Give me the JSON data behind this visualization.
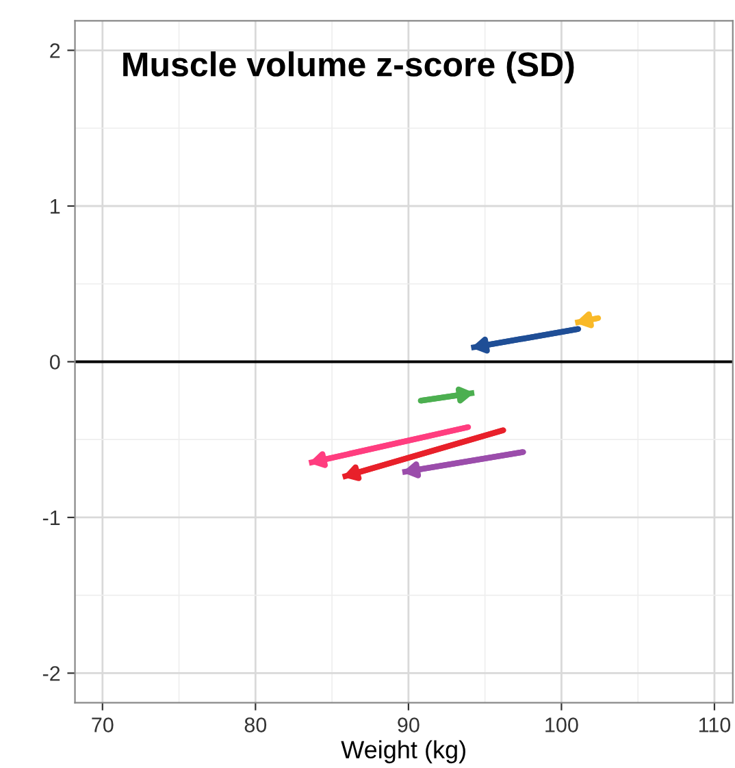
{
  "chart_data": {
    "type": "line",
    "title": "Muscle volume z-score (SD)",
    "xlabel": "Weight (kg)",
    "xlim": [
      68.2,
      111.2
    ],
    "ylim": [
      -2.19,
      2.19
    ],
    "xticks": [
      70,
      80,
      90,
      100,
      110
    ],
    "yticks": [
      -2,
      -1,
      0,
      1,
      2
    ],
    "grid": true,
    "marker": "none",
    "line_style": "solid",
    "ref_lines": [
      {
        "axis": "y",
        "value": 0,
        "color": "#000000"
      }
    ],
    "series": [
      {
        "color": "#1f4e96",
        "x": [
          101.1,
          94.1
        ],
        "values": [
          0.21,
          0.09
        ]
      },
      {
        "color": "#f9b928",
        "x": [
          102.4,
          100.9
        ],
        "values": [
          0.28,
          0.25
        ]
      },
      {
        "color": "#4caf50",
        "x": [
          90.8,
          94.3
        ],
        "values": [
          -0.25,
          -0.2
        ]
      },
      {
        "color": "#ff3d7f",
        "x": [
          93.9,
          83.5
        ],
        "values": [
          -0.42,
          -0.65
        ]
      },
      {
        "color": "#e8202a",
        "x": [
          96.2,
          85.7
        ],
        "values": [
          -0.44,
          -0.74
        ]
      },
      {
        "color": "#9b4dab",
        "x": [
          97.5,
          89.6
        ],
        "values": [
          -0.58,
          -0.71
        ]
      }
    ]
  }
}
